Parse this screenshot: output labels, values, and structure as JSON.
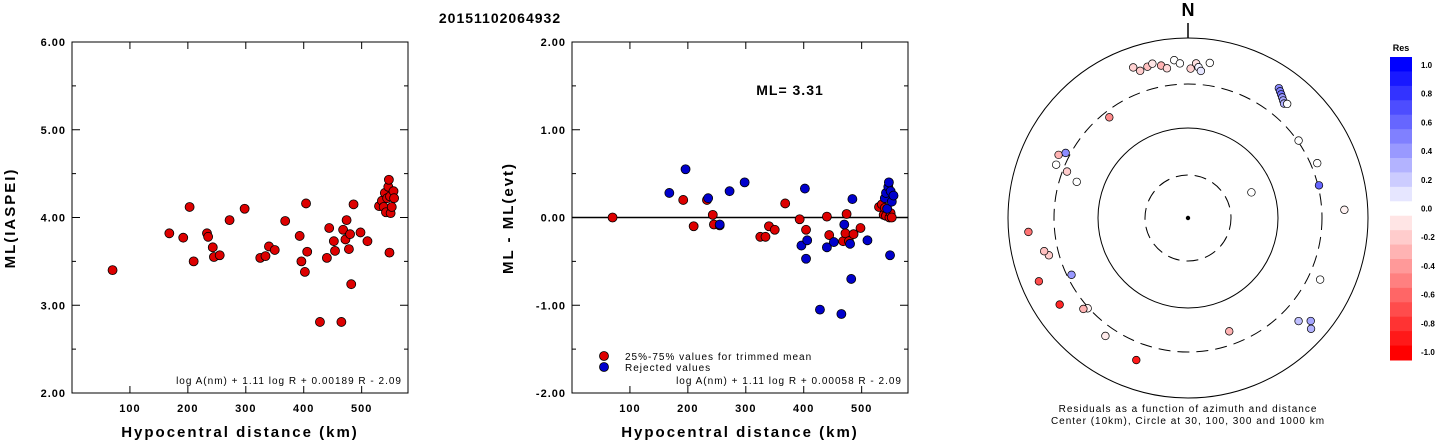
{
  "title": "20151102064932",
  "colors": {
    "red": "#dd0000",
    "blue": "#0000cc"
  },
  "chart_data": [
    {
      "type": "scatter",
      "xlabel": "Hypocentral distance (km)",
      "ylabel": "ML(IASPEI)",
      "xlim": [
        0,
        580
      ],
      "ylim": [
        2.0,
        6.0
      ],
      "xticks": [
        "100",
        "200",
        "300",
        "400",
        "500"
      ],
      "yticks": [
        "2.00",
        "3.00",
        "4.00",
        "5.00",
        "6.00"
      ],
      "formula": "log A(nm) + 1.11 log R + 0.00189 R - 2.09",
      "series": [
        {
          "color": "red",
          "points": [
            [
              70,
              3.4
            ],
            [
              168,
              3.82
            ],
            [
              192,
              3.77
            ],
            [
              203,
              4.12
            ],
            [
              210,
              3.5
            ],
            [
              233,
              3.82
            ],
            [
              235,
              3.78
            ],
            [
              243,
              3.66
            ],
            [
              245,
              3.55
            ],
            [
              255,
              3.57
            ],
            [
              272,
              3.97
            ],
            [
              298,
              4.1
            ],
            [
              325,
              3.54
            ],
            [
              334,
              3.56
            ],
            [
              340,
              3.67
            ],
            [
              350,
              3.63
            ],
            [
              368,
              3.96
            ],
            [
              393,
              3.79
            ],
            [
              396,
              3.5
            ],
            [
              402,
              3.38
            ],
            [
              404,
              4.16
            ],
            [
              406,
              3.61
            ],
            [
              428,
              2.81
            ],
            [
              440,
              3.54
            ],
            [
              444,
              3.88
            ],
            [
              452,
              3.73
            ],
            [
              454,
              3.62
            ],
            [
              465,
              2.81
            ],
            [
              468,
              3.86
            ],
            [
              472,
              3.75
            ],
            [
              474,
              3.97
            ],
            [
              478,
              3.64
            ],
            [
              480,
              3.81
            ],
            [
              482,
              3.24
            ],
            [
              486,
              4.15
            ],
            [
              498,
              3.83
            ],
            [
              510,
              3.73
            ],
            [
              530,
              4.13
            ],
            [
              535,
              4.19
            ],
            [
              538,
              4.12
            ],
            [
              540,
              4.28
            ],
            [
              542,
              4.06
            ],
            [
              544,
              4.22
            ],
            [
              546,
              4.35
            ],
            [
              547,
              4.43
            ],
            [
              548,
              3.6
            ],
            [
              549,
              4.24
            ],
            [
              550,
              4.05
            ],
            [
              552,
              4.12
            ],
            [
              555,
              4.3
            ],
            [
              556,
              4.22
            ]
          ]
        }
      ]
    },
    {
      "type": "scatter",
      "xlabel": "Hypocentral distance (km)",
      "ylabel": "ML - ML(evt)",
      "xlim": [
        0,
        580
      ],
      "ylim": [
        -2.0,
        2.0
      ],
      "xticks": [
        "100",
        "200",
        "300",
        "400",
        "500"
      ],
      "yticks": [
        "-2.00",
        "-1.00",
        "0.00",
        "1.00",
        "2.00"
      ],
      "annotation": "ML= 3.31",
      "formula": "log A(nm) + 1.11 log R + 0.00058 R - 2.09",
      "legend": [
        "25%-75% values for trimmed mean",
        "Rejected values"
      ],
      "series": [
        {
          "name": "25%-75% values for trimmed mean",
          "color": "red",
          "points": [
            [
              70,
              0.0
            ],
            [
              192,
              0.2
            ],
            [
              210,
              -0.1
            ],
            [
              233,
              0.2
            ],
            [
              243,
              0.03
            ],
            [
              245,
              -0.08
            ],
            [
              255,
              -0.09
            ],
            [
              325,
              -0.22
            ],
            [
              334,
              -0.22
            ],
            [
              340,
              -0.1
            ],
            [
              350,
              -0.14
            ],
            [
              368,
              0.16
            ],
            [
              393,
              -0.02
            ],
            [
              404,
              -0.14
            ],
            [
              440,
              0.01
            ],
            [
              444,
              -0.2
            ],
            [
              468,
              -0.27
            ],
            [
              472,
              -0.18
            ],
            [
              474,
              0.04
            ],
            [
              478,
              -0.27
            ],
            [
              486,
              -0.19
            ],
            [
              498,
              -0.12
            ],
            [
              530,
              0.12
            ],
            [
              535,
              0.15
            ],
            [
              538,
              0.03
            ],
            [
              540,
              0.11
            ],
            [
              542,
              0.02
            ],
            [
              548,
              0.0
            ],
            [
              550,
              0.05
            ],
            [
              552,
              0.0
            ]
          ]
        },
        {
          "name": "Rejected values",
          "color": "blue",
          "points": [
            [
              168,
              0.28
            ],
            [
              196,
              0.55
            ],
            [
              235,
              0.22
            ],
            [
              255,
              -0.08
            ],
            [
              272,
              0.3
            ],
            [
              298,
              0.4
            ],
            [
              396,
              -0.32
            ],
            [
              402,
              0.33
            ],
            [
              404,
              -0.47
            ],
            [
              406,
              -0.26
            ],
            [
              428,
              -1.05
            ],
            [
              440,
              -0.34
            ],
            [
              452,
              -0.28
            ],
            [
              465,
              -1.1
            ],
            [
              470,
              -0.08
            ],
            [
              480,
              -0.3
            ],
            [
              482,
              -0.7
            ],
            [
              484,
              0.21
            ],
            [
              510,
              -0.26
            ],
            [
              540,
              0.22
            ],
            [
              542,
              0.28
            ],
            [
              544,
              0.1
            ],
            [
              546,
              0.35
            ],
            [
              547,
              0.4
            ],
            [
              549,
              -0.43
            ],
            [
              550,
              0.3
            ],
            [
              552,
              0.18
            ],
            [
              555,
              0.25
            ]
          ]
        }
      ]
    },
    {
      "type": "polar-scatter",
      "north_label": "N",
      "caption_line1": "Residuals as a function of azimuth and distance",
      "caption_line2": "Center (10km), Circle at 30, 100, 300 and 1000 km",
      "colorbar": {
        "title": "Res",
        "labels": [
          "1.0",
          "0.8",
          "0.6",
          "0.4",
          "0.2",
          "0.0",
          "-0.2",
          "-0.4",
          "-0.6",
          "-0.8",
          "-1.0"
        ]
      },
      "points": [
        {
          "az": 68,
          "r": 0.38,
          "res": 0.0
        },
        {
          "az": 340,
          "r": 0.89,
          "res": -0.18
        },
        {
          "az": 342,
          "r": 0.86,
          "res": -0.2
        },
        {
          "az": 345,
          "r": 0.87,
          "res": -0.25
        },
        {
          "az": 347,
          "r": 0.88,
          "res": -0.1
        },
        {
          "az": 350,
          "r": 0.86,
          "res": -0.3
        },
        {
          "az": 352,
          "r": 0.84,
          "res": -0.15
        },
        {
          "az": 355,
          "r": 0.88,
          "res": 0.0
        },
        {
          "az": 357,
          "r": 0.86,
          "res": 0.0
        },
        {
          "az": 3,
          "r": 0.86,
          "res": -0.12
        },
        {
          "az": 4,
          "r": 0.84,
          "res": 0.05
        },
        {
          "az": 5,
          "r": 0.82,
          "res": 0.1
        },
        {
          "az": 1,
          "r": 0.83,
          "res": -0.18
        },
        {
          "az": 8,
          "r": 0.87,
          "res": 0.0
        },
        {
          "az": 35,
          "r": 0.88,
          "res": 0.45
        },
        {
          "az": 36,
          "r": 0.87,
          "res": 0.5
        },
        {
          "az": 37,
          "r": 0.86,
          "res": 0.55
        },
        {
          "az": 38,
          "r": 0.85,
          "res": 0.4
        },
        {
          "az": 39,
          "r": 0.84,
          "res": 0.35
        },
        {
          "az": 40,
          "r": 0.83,
          "res": 0.3
        },
        {
          "az": 41,
          "r": 0.84,
          "res": 0.0
        },
        {
          "az": 55,
          "r": 0.75,
          "res": 0.0
        },
        {
          "az": 67,
          "r": 0.78,
          "res": 0.0
        },
        {
          "az": 76,
          "r": 0.75,
          "res": 0.6
        },
        {
          "az": 87,
          "r": 0.87,
          "res": -0.05
        },
        {
          "az": 115,
          "r": 0.81,
          "res": 0.0
        },
        {
          "az": 130,
          "r": 0.89,
          "res": 0.35
        },
        {
          "az": 132,
          "r": 0.92,
          "res": 0.3
        },
        {
          "az": 133,
          "r": 0.84,
          "res": 0.25
        },
        {
          "az": 160,
          "r": 0.67,
          "res": -0.3
        },
        {
          "az": 200,
          "r": 0.84,
          "res": -0.9
        },
        {
          "az": 215,
          "r": 0.8,
          "res": -0.08
        },
        {
          "az": 228,
          "r": 0.75,
          "res": -0.05
        },
        {
          "az": 229,
          "r": 0.77,
          "res": -0.3
        },
        {
          "az": 236,
          "r": 0.86,
          "res": -0.85
        },
        {
          "az": 244,
          "r": 0.72,
          "res": 0.4
        },
        {
          "az": 247,
          "r": 0.9,
          "res": -0.7
        },
        {
          "az": 255,
          "r": 0.8,
          "res": -0.2
        },
        {
          "az": 257,
          "r": 0.82,
          "res": -0.25
        },
        {
          "az": 265,
          "r": 0.89,
          "res": -0.55
        },
        {
          "az": 288,
          "r": 0.65,
          "res": 0.0
        },
        {
          "az": 291,
          "r": 0.72,
          "res": -0.2
        },
        {
          "az": 292,
          "r": 0.79,
          "res": 0.0
        },
        {
          "az": 296,
          "r": 0.8,
          "res": -0.3
        },
        {
          "az": 298,
          "r": 0.77,
          "res": 0.45
        },
        {
          "az": 322,
          "r": 0.71,
          "res": -0.45
        }
      ]
    }
  ]
}
